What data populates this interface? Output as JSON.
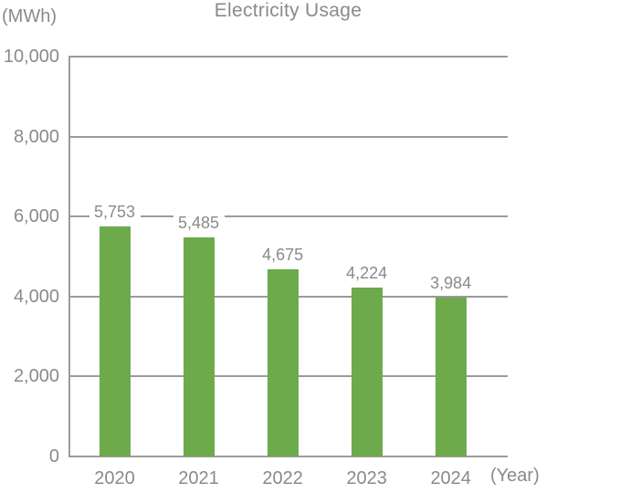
{
  "chart": {
    "title": "Electricity Usage",
    "y_axis_unit": "(MWh)",
    "x_axis_unit": "(Year)"
  },
  "chart_data": {
    "type": "bar",
    "title": "Electricity Usage",
    "categories": [
      "2020",
      "2021",
      "2022",
      "2023",
      "2024"
    ],
    "values": [
      5753,
      5485,
      4675,
      4224,
      3984
    ],
    "data_labels": [
      "5,753",
      "5,485",
      "4,675",
      "4,224",
      "3,984"
    ],
    "xlabel": "(Year)",
    "ylabel": "(MWh)",
    "ylim": [
      0,
      10000
    ],
    "y_ticks": [
      0,
      2000,
      4000,
      6000,
      8000,
      10000
    ],
    "y_tick_labels": [
      "0",
      "2,000",
      "4,000",
      "6,000",
      "8,000",
      "10,000"
    ],
    "grid": true,
    "legend": false,
    "bar_color": "#6caa4b",
    "text_color": "#8a8a8a",
    "grid_color": "#9b9b9b"
  }
}
